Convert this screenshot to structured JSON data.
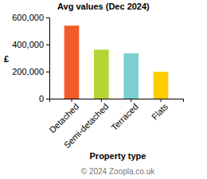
{
  "chart_data": {
    "type": "bar",
    "title": "Avg values (Dec 2024)",
    "x_label": "Property type",
    "y_label": "£",
    "categories": [
      "Detached",
      "Semi-detached",
      "Terraced",
      "Flats"
    ],
    "values": [
      540000,
      362000,
      335000,
      198000
    ],
    "colors": [
      "#f15a29",
      "#b5d334",
      "#7ecfcf",
      "#ffcc00"
    ],
    "ylim": [
      0,
      600000
    ],
    "yticks": [
      0,
      {
        "value": 200000,
        "label": "200,000"
      },
      {
        "value": 400000,
        "label": "400,000"
      },
      {
        "value": 600000,
        "label": "600,000"
      }
    ],
    "grid": false,
    "footer": "© 2024 Zoopla.co.uk"
  }
}
